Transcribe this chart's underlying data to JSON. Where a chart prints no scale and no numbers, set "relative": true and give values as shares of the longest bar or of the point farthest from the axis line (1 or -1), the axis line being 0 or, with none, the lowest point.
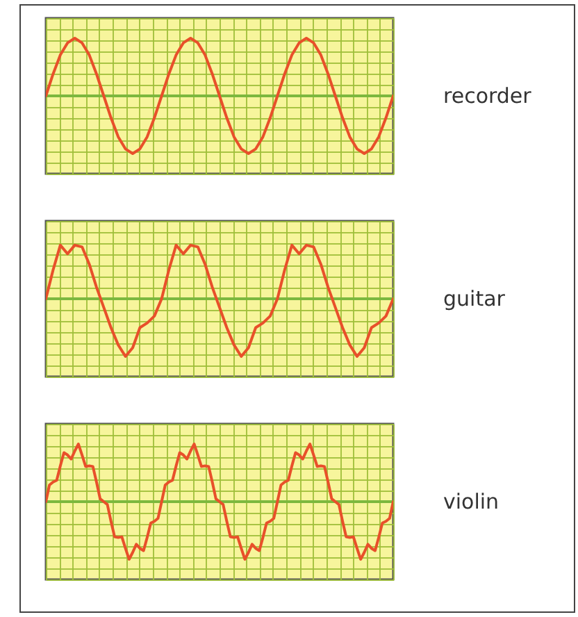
{
  "chart_data": [
    {
      "type": "line",
      "relative": true,
      "grid": true,
      "categories": [
        null,
        null,
        null,
        null,
        null,
        null,
        null,
        null,
        null,
        null,
        null,
        null,
        null,
        null,
        null,
        null,
        null,
        null,
        null,
        null,
        null,
        null,
        null,
        null,
        null,
        null,
        null,
        null,
        null,
        null,
        null,
        null,
        null,
        null,
        null,
        null,
        null,
        null,
        null,
        null,
        null,
        null,
        null,
        null,
        null,
        null,
        null,
        null,
        null
      ],
      "series": [
        {
          "name": "recorder",
          "color": "#e8502a",
          "values": [
            0,
            0.38,
            0.71,
            0.92,
            1,
            0.92,
            0.71,
            0.38,
            0,
            -0.38,
            -0.71,
            -0.92,
            -1,
            -0.92,
            -0.71,
            -0.38,
            0,
            0.38,
            0.71,
            0.92,
            1,
            0.92,
            0.71,
            0.38,
            0,
            -0.38,
            -0.71,
            -0.92,
            -1,
            -0.92,
            -0.71,
            -0.38,
            0,
            0.38,
            0.71,
            0.92,
            1,
            0.92,
            0.71,
            0.38,
            0,
            -0.38,
            -0.71,
            -0.92,
            -1,
            -0.92,
            -0.71,
            -0.38,
            0
          ]
        }
      ],
      "ref_lines": [
        {
          "axis": "y",
          "value": 0,
          "color": "#7cb83e"
        }
      ]
    },
    {
      "type": "line",
      "relative": true,
      "grid": true,
      "categories": [
        null,
        null,
        null,
        null,
        null,
        null,
        null,
        null,
        null,
        null,
        null,
        null,
        null,
        null,
        null,
        null,
        null,
        null,
        null,
        null,
        null,
        null,
        null,
        null,
        null,
        null,
        null,
        null,
        null,
        null,
        null,
        null,
        null,
        null,
        null,
        null,
        null,
        null,
        null,
        null,
        null,
        null,
        null,
        null,
        null,
        null,
        null,
        null,
        null
      ],
      "series": [
        {
          "name": "guitar",
          "color": "#e8502a",
          "values": [
            0,
            0.5,
            0.93,
            0.78,
            0.93,
            0.9,
            0.6,
            0.2,
            -0.15,
            -0.5,
            -0.8,
            -1,
            -0.85,
            -0.5,
            -0.42,
            -0.3,
            0,
            0.5,
            0.93,
            0.78,
            0.93,
            0.9,
            0.6,
            0.2,
            -0.15,
            -0.5,
            -0.8,
            -1,
            -0.85,
            -0.5,
            -0.42,
            -0.3,
            0,
            0.5,
            0.93,
            0.78,
            0.93,
            0.9,
            0.6,
            0.2,
            -0.15,
            -0.5,
            -0.8,
            -1,
            -0.85,
            -0.5,
            -0.42,
            -0.3,
            0
          ]
        }
      ],
      "ref_lines": [
        {
          "axis": "y",
          "value": 0,
          "color": "#7cb83e"
        }
      ]
    },
    {
      "type": "line",
      "relative": true,
      "grid": true,
      "categories": [
        null,
        null,
        null,
        null,
        null,
        null,
        null,
        null,
        null,
        null,
        null,
        null,
        null,
        null,
        null,
        null,
        null,
        null,
        null,
        null,
        null,
        null,
        null,
        null,
        null,
        null,
        null,
        null,
        null,
        null,
        null,
        null,
        null,
        null,
        null,
        null,
        null,
        null,
        null,
        null,
        null,
        null,
        null,
        null,
        null,
        null,
        null,
        null,
        null,
        null,
        null,
        null,
        null,
        null,
        null,
        null,
        null,
        null,
        null,
        null,
        null,
        null,
        null,
        null,
        null,
        null,
        null,
        null,
        null,
        null,
        null,
        null,
        null,
        null,
        null,
        null,
        null,
        null,
        null,
        null,
        null,
        null,
        null,
        null,
        null,
        null,
        null,
        null,
        null,
        null,
        null,
        null,
        null,
        null,
        null,
        null,
        null
      ],
      "series": [
        {
          "name": "violin",
          "color": "#e8502a",
          "values": [
            0,
            0.29,
            0.34,
            0.37,
            0.62,
            0.85,
            0.81,
            0.74,
            0.88,
            1,
            0.81,
            0.61,
            0.62,
            0.61,
            0.34,
            0.05,
            0,
            -0.05,
            -0.34,
            -0.61,
            -0.62,
            -0.61,
            -0.81,
            -1,
            -0.88,
            -0.74,
            -0.81,
            -0.85,
            -0.62,
            -0.37,
            -0.34,
            -0.29,
            0,
            0.29,
            0.34,
            0.37,
            0.62,
            0.85,
            0.81,
            0.74,
            0.88,
            1,
            0.81,
            0.61,
            0.62,
            0.61,
            0.34,
            0.05,
            0,
            -0.05,
            -0.34,
            -0.61,
            -0.62,
            -0.61,
            -0.81,
            -1,
            -0.88,
            -0.74,
            -0.81,
            -0.85,
            -0.62,
            -0.37,
            -0.34,
            -0.29,
            0,
            0.29,
            0.34,
            0.37,
            0.62,
            0.85,
            0.81,
            0.74,
            0.88,
            1,
            0.81,
            0.61,
            0.62,
            0.61,
            0.34,
            0.05,
            0,
            -0.05,
            -0.34,
            -0.61,
            -0.62,
            -0.61,
            -0.81,
            -1,
            -0.88,
            -0.74,
            -0.81,
            -0.85,
            -0.62,
            -0.37,
            -0.34,
            -0.29,
            0
          ]
        }
      ],
      "ref_lines": [
        {
          "axis": "y",
          "value": 0,
          "color": "#7cb83e"
        }
      ]
    }
  ]
}
